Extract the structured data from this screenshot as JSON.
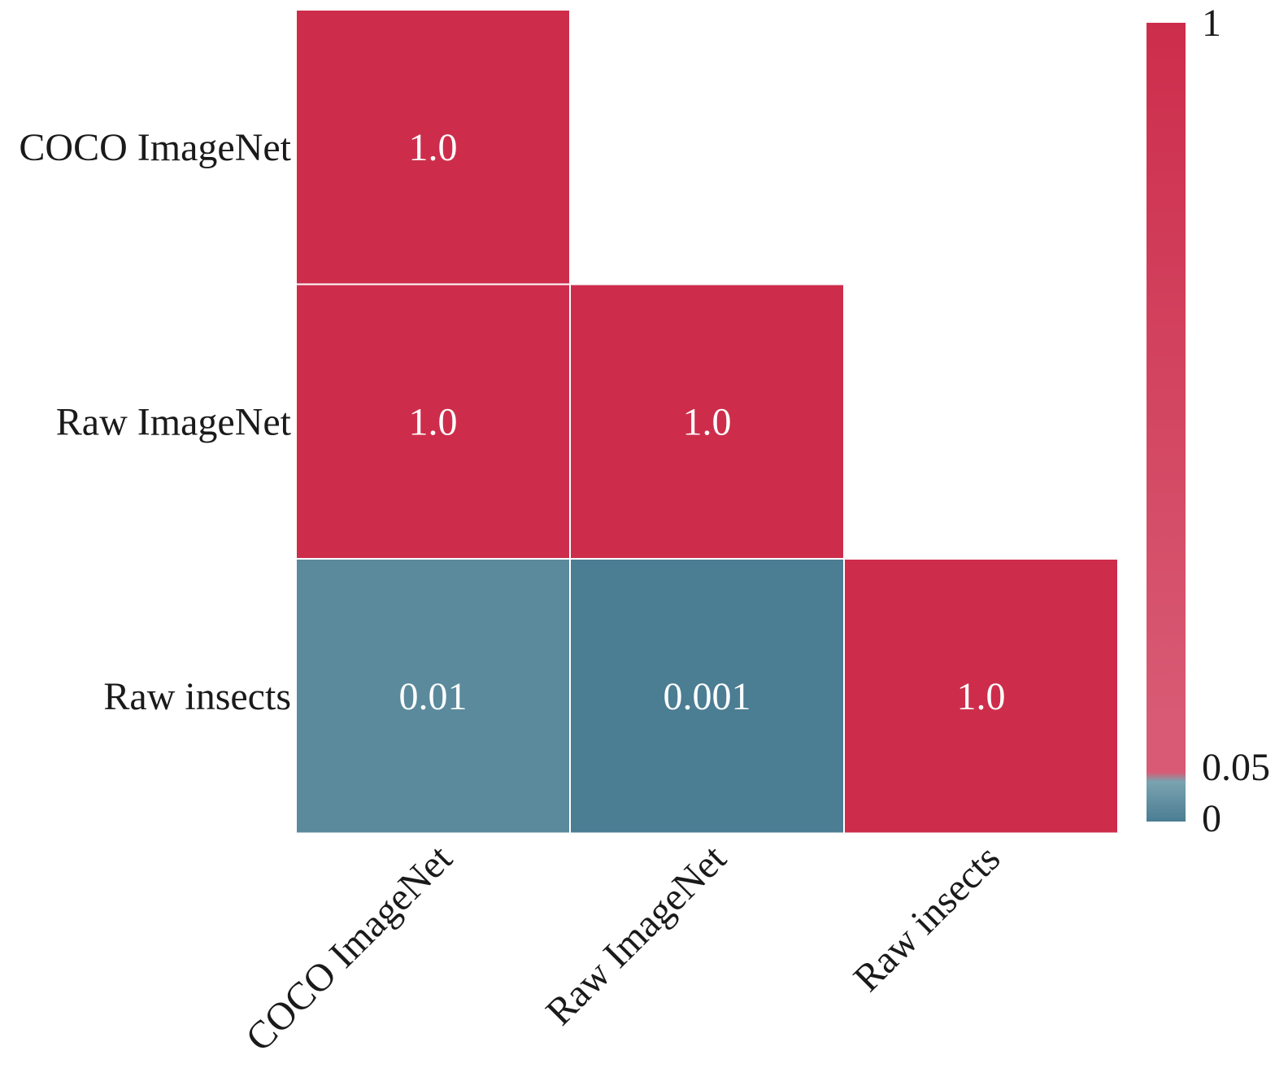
{
  "chart_data": {
    "type": "heatmap",
    "title": "",
    "xlabel": "",
    "ylabel": "",
    "x_categories": [
      "COCO ImageNet",
      "Raw ImageNet",
      "Raw insects"
    ],
    "y_categories": [
      "COCO ImageNet",
      "Raw ImageNet",
      "Raw insects"
    ],
    "mask": "upper triangle (lower-triangular matrix shown)",
    "cells": [
      {
        "row": "COCO ImageNet",
        "col": "COCO ImageNet",
        "value": 1.0,
        "label": "1.0"
      },
      {
        "row": "Raw ImageNet",
        "col": "COCO ImageNet",
        "value": 1.0,
        "label": "1.0"
      },
      {
        "row": "Raw ImageNet",
        "col": "Raw ImageNet",
        "value": 1.0,
        "label": "1.0"
      },
      {
        "row": "Raw insects",
        "col": "COCO ImageNet",
        "value": 0.01,
        "label": "0.01"
      },
      {
        "row": "Raw insects",
        "col": "Raw ImageNet",
        "value": 0.001,
        "label": "0.001"
      },
      {
        "row": "Raw insects",
        "col": "Raw insects",
        "value": 1.0,
        "label": "1.0"
      }
    ],
    "colorbar": {
      "range": [
        0,
        1
      ],
      "ticks": [
        {
          "value": 1,
          "label": "1"
        },
        {
          "value": 0.05,
          "label": "0.05"
        },
        {
          "value": 0,
          "label": "0"
        }
      ],
      "threshold": 0.05
    },
    "colors": {
      "high": "#cd2d4b",
      "low": "#4b7d93",
      "low_light": "#5a8a9c",
      "bar_top": "#cd2d4b",
      "bar_mid": "#d85a74",
      "bar_threshold_low": "#7aa3b0",
      "bar_bottom": "#4b7d93",
      "cell_border": "#ffffff",
      "cell_text": "#ffffff"
    }
  }
}
